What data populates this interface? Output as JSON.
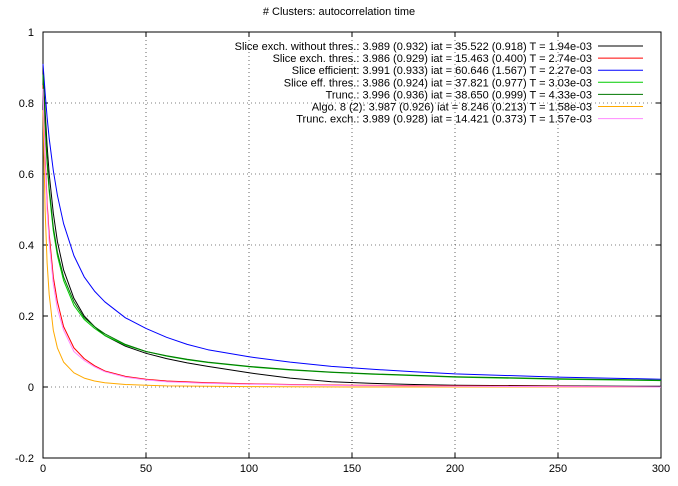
{
  "chart_data": {
    "type": "line",
    "title": "# Clusters: autocorrelation time",
    "xlabel": "",
    "ylabel": "",
    "xlim": [
      0,
      300
    ],
    "ylim": [
      -0.2,
      1
    ],
    "xticks": [
      0,
      50,
      100,
      150,
      200,
      250,
      300
    ],
    "yticks": [
      -0.2,
      0,
      0.2,
      0.4,
      0.6,
      0.8,
      1
    ],
    "xtick_labels": [
      "0",
      "50",
      "100",
      "150",
      "200",
      "250",
      "300"
    ],
    "ytick_labels": [
      "-0.2",
      "0",
      "0.2",
      "0.4",
      "0.6",
      "0.8",
      "1"
    ],
    "grid": true,
    "legend_position": "top-right",
    "series": [
      {
        "name": "Slice exch. without thres.: 3.989 (0.932) iat = 35.522 (0.918) T = 1.94e-03",
        "color": "#000000",
        "x": [
          0,
          1,
          2,
          3,
          5,
          7,
          10,
          15,
          20,
          25,
          30,
          40,
          50,
          60,
          70,
          80,
          100,
          120,
          140,
          160,
          180,
          200,
          250,
          300
        ],
        "y": [
          0.9,
          0.78,
          0.68,
          0.6,
          0.49,
          0.41,
          0.33,
          0.25,
          0.2,
          0.17,
          0.145,
          0.115,
          0.095,
          0.08,
          0.068,
          0.058,
          0.04,
          0.025,
          0.015,
          0.01,
          0.007,
          0.005,
          0.003,
          0.002
        ]
      },
      {
        "name": "Slice exch. thres.: 3.986 (0.929) iat = 15.463 (0.400) T = 2.74e-03",
        "color": "#ff0000",
        "x": [
          0,
          1,
          2,
          3,
          5,
          7,
          10,
          15,
          20,
          25,
          30,
          40,
          50,
          60,
          80,
          100,
          120,
          150,
          200,
          250,
          300
        ],
        "y": [
          0.85,
          0.65,
          0.52,
          0.43,
          0.31,
          0.24,
          0.17,
          0.11,
          0.08,
          0.06,
          0.045,
          0.03,
          0.022,
          0.017,
          0.012,
          0.009,
          0.007,
          0.005,
          0.003,
          0.002,
          0.0
        ]
      },
      {
        "name": "Slice efficient: 3.991 (0.933) iat = 60.646 (1.567) T = 2.27e-03",
        "color": "#0000ff",
        "x": [
          0,
          1,
          2,
          3,
          5,
          7,
          10,
          15,
          20,
          25,
          30,
          40,
          50,
          60,
          70,
          80,
          100,
          120,
          140,
          160,
          180,
          200,
          250,
          300
        ],
        "y": [
          0.91,
          0.83,
          0.76,
          0.7,
          0.61,
          0.54,
          0.46,
          0.37,
          0.31,
          0.27,
          0.24,
          0.195,
          0.165,
          0.14,
          0.12,
          0.105,
          0.085,
          0.07,
          0.058,
          0.05,
          0.043,
          0.037,
          0.028,
          0.022
        ]
      },
      {
        "name": "Slice eff. thres.: 3.986 (0.924) iat = 37.821 (0.977) T = 3.03e-03",
        "color": "#00cc00",
        "x": [
          0,
          1,
          2,
          3,
          5,
          7,
          10,
          15,
          20,
          25,
          30,
          40,
          50,
          60,
          70,
          80,
          100,
          120,
          140,
          160,
          180,
          200,
          250,
          300
        ],
        "y": [
          0.88,
          0.74,
          0.63,
          0.55,
          0.44,
          0.37,
          0.3,
          0.23,
          0.19,
          0.165,
          0.145,
          0.118,
          0.1,
          0.087,
          0.077,
          0.069,
          0.057,
          0.048,
          0.041,
          0.036,
          0.032,
          0.028,
          0.022,
          0.018
        ]
      },
      {
        "name": "Trunc.: 3.996 (0.936) iat = 38.650 (0.999) T = 4.33e-03",
        "color": "#007700",
        "x": [
          0,
          1,
          2,
          3,
          5,
          7,
          10,
          15,
          20,
          25,
          30,
          40,
          50,
          60,
          70,
          80,
          100,
          120,
          140,
          160,
          180,
          200,
          250,
          300
        ],
        "y": [
          0.88,
          0.75,
          0.64,
          0.56,
          0.45,
          0.38,
          0.31,
          0.24,
          0.195,
          0.17,
          0.15,
          0.12,
          0.1,
          0.088,
          0.078,
          0.07,
          0.058,
          0.049,
          0.042,
          0.037,
          0.033,
          0.029,
          0.023,
          0.019
        ]
      },
      {
        "name": "Algo. 8 (2): 3.987 (0.926) iat = 8.246 (0.213) T = 1.58e-03",
        "color": "#ffaa00",
        "x": [
          0,
          1,
          2,
          3,
          5,
          7,
          10,
          15,
          20,
          25,
          30,
          40,
          50,
          60,
          80,
          100,
          150,
          200,
          250,
          300
        ],
        "y": [
          0.78,
          0.5,
          0.35,
          0.26,
          0.16,
          0.11,
          0.07,
          0.04,
          0.025,
          0.017,
          0.012,
          0.007,
          0.005,
          0.003,
          0.002,
          0.001,
          0.0,
          0.0,
          0.0,
          0.0
        ]
      },
      {
        "name": "Trunc. exch.: 3.989 (0.928) iat = 14.421 (0.373) T = 1.57e-03",
        "color": "#ff88ff",
        "x": [
          0,
          1,
          2,
          3,
          5,
          7,
          10,
          15,
          20,
          25,
          30,
          40,
          50,
          60,
          80,
          100,
          120,
          150,
          200,
          250,
          300
        ],
        "y": [
          0.84,
          0.63,
          0.5,
          0.41,
          0.29,
          0.22,
          0.16,
          0.1,
          0.075,
          0.057,
          0.043,
          0.028,
          0.02,
          0.015,
          0.01,
          0.008,
          0.006,
          0.004,
          0.002,
          0.001,
          0.0
        ]
      }
    ]
  }
}
